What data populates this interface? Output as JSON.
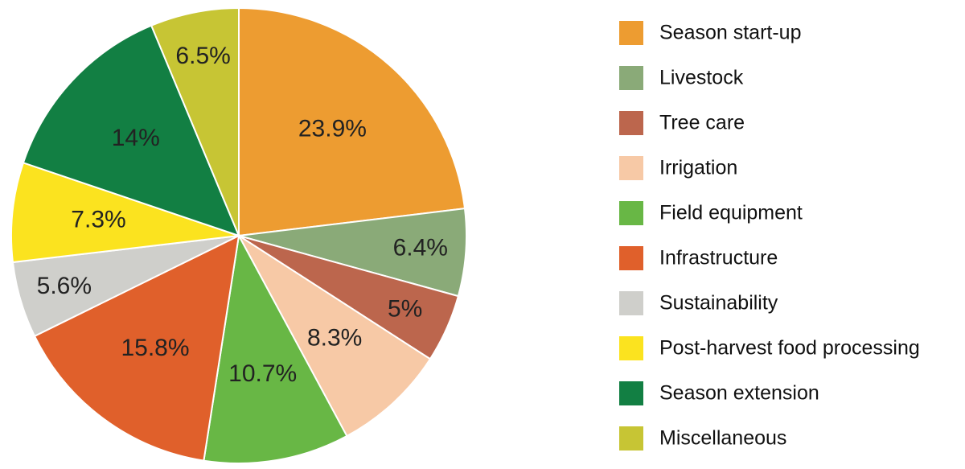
{
  "chart_data": {
    "type": "pie",
    "categories": [
      "Season start-up",
      "Livestock",
      "Tree care",
      "Irrigation",
      "Field equipment",
      "Infrastructure",
      "Sustainability",
      "Post-harvest food processing",
      "Season extension",
      "Miscellaneous"
    ],
    "values": [
      23.9,
      6.4,
      5,
      8.3,
      10.7,
      15.8,
      5.6,
      7.3,
      14,
      6.5
    ],
    "value_labels": [
      "23.9%",
      "6.4%",
      "5%",
      "8.3%",
      "10.7%",
      "15.8%",
      "5.6%",
      "7.3%",
      "14%",
      "6.5%"
    ],
    "colors": [
      "#ed9c31",
      "#8aaa78",
      "#bc664d",
      "#f7c9a6",
      "#68b745",
      "#e0602b",
      "#cfcfcb",
      "#fbe31f",
      "#127f43",
      "#c7c534"
    ],
    "legend": "right"
  }
}
